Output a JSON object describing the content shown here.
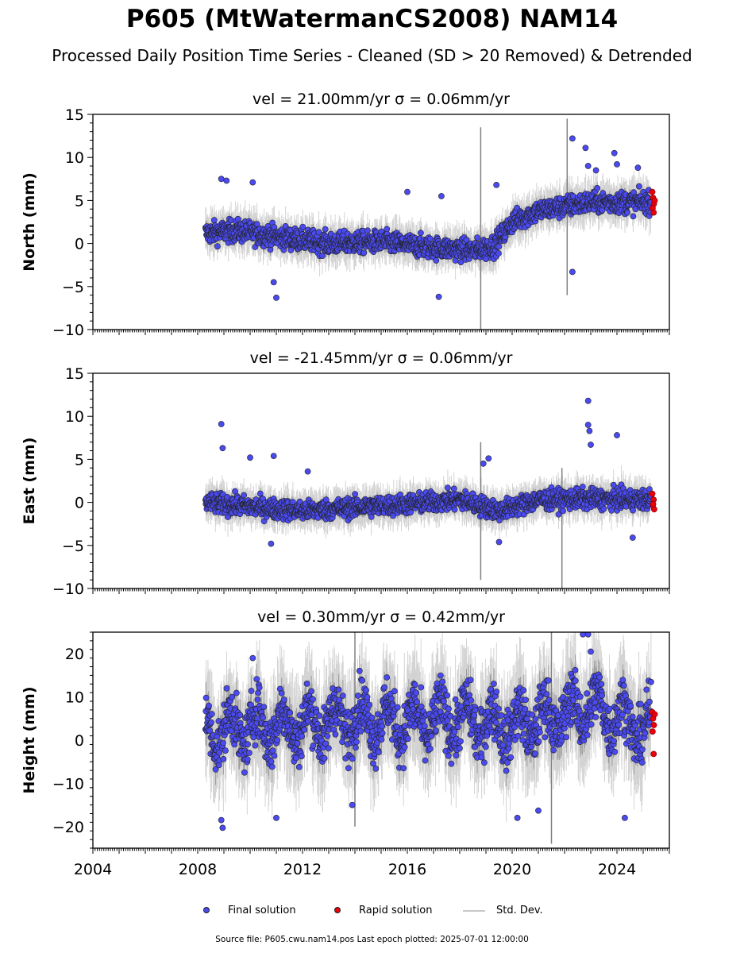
{
  "title": "P605 (MtWatermanCS2008) NAM14",
  "subtitle": "Processed Daily Position Time Series - Cleaned (SD > 20 Removed) & Detrended",
  "legend": {
    "final": "Final solution",
    "rapid": "Rapid solution",
    "std": "Std. Dev."
  },
  "footer": "Source file: P605.cwu.nam14.pos  Last epoch plotted: 2025-07-01 12:00:00",
  "colors": {
    "final": "#4a4af0",
    "rapid": "#e8000b",
    "std": "#c8c8c8",
    "marker_edge": "#222222"
  },
  "chart_data": [
    {
      "type": "scatter",
      "name": "north",
      "title": "vel = 21.00mm/yr   σ = 0.06mm/yr",
      "ylabel": "North (mm)",
      "xlim": [
        2004,
        2026
      ],
      "ylim": [
        -10,
        15
      ],
      "yticks": [
        -10,
        -5,
        0,
        5,
        10,
        15
      ],
      "ytick_labels": [
        "−10",
        "−5",
        "0",
        "5",
        "10",
        "15"
      ],
      "xticks": [
        2004,
        2008,
        2012,
        2016,
        2020,
        2024
      ],
      "xtick_labels": [
        "",
        "",
        "",
        "",
        "",
        ""
      ],
      "trend": [
        [
          2008.3,
          1.2
        ],
        [
          2009.5,
          1.5
        ],
        [
          2011.0,
          0.8
        ],
        [
          2013.0,
          0.0
        ],
        [
          2015.0,
          0.2
        ],
        [
          2017.0,
          -0.5
        ],
        [
          2018.5,
          -0.8
        ],
        [
          2019.3,
          -0.3
        ],
        [
          2020.0,
          2.5
        ],
        [
          2021.0,
          3.8
        ],
        [
          2022.0,
          4.3
        ],
        [
          2023.0,
          4.8
        ],
        [
          2025.3,
          4.8
        ]
      ],
      "outliers": [
        [
          2008.9,
          7.5
        ],
        [
          2009.1,
          7.3
        ],
        [
          2010.1,
          7.1
        ],
        [
          2010.9,
          -4.5
        ],
        [
          2011.0,
          -6.3
        ],
        [
          2016.0,
          6.0
        ],
        [
          2017.2,
          -6.2
        ],
        [
          2017.3,
          5.5
        ],
        [
          2019.0,
          -1.8
        ],
        [
          2019.4,
          6.8
        ],
        [
          2022.3,
          12.2
        ],
        [
          2022.3,
          -3.3
        ],
        [
          2022.8,
          11.1
        ],
        [
          2022.9,
          9.0
        ],
        [
          2023.2,
          8.5
        ],
        [
          2023.9,
          10.5
        ],
        [
          2024.0,
          9.2
        ],
        [
          2024.8,
          8.8
        ]
      ],
      "rapid": [
        [
          2025.35,
          6.0
        ],
        [
          2025.38,
          5.3
        ],
        [
          2025.41,
          4.6
        ],
        [
          2025.36,
          4.1
        ],
        [
          2025.4,
          3.6
        ],
        [
          2025.44,
          5.0
        ]
      ],
      "spread": 1.2,
      "sd_spikes": [
        [
          2018.8,
          -10,
          13.5
        ],
        [
          2022.1,
          -6,
          14.5
        ]
      ]
    },
    {
      "type": "scatter",
      "name": "east",
      "title": "vel = -21.45mm/yr   σ = 0.06mm/yr",
      "ylabel": "East (mm)",
      "xlim": [
        2004,
        2026
      ],
      "ylim": [
        -10,
        15
      ],
      "yticks": [
        -10,
        -5,
        0,
        5,
        10,
        15
      ],
      "ytick_labels": [
        "−10",
        "−5",
        "0",
        "5",
        "10",
        "15"
      ],
      "xticks": [
        2004,
        2008,
        2012,
        2016,
        2020,
        2024
      ],
      "xtick_labels": [
        "",
        "",
        "",
        "",
        "",
        ""
      ],
      "trend": [
        [
          2008.3,
          0.0
        ],
        [
          2010.0,
          -0.5
        ],
        [
          2012.0,
          -1.0
        ],
        [
          2014.0,
          -0.6
        ],
        [
          2016.0,
          -0.2
        ],
        [
          2018.0,
          0.3
        ],
        [
          2019.5,
          -1.0
        ],
        [
          2021.0,
          0.3
        ],
        [
          2023.0,
          0.4
        ],
        [
          2025.3,
          0.3
        ]
      ],
      "outliers": [
        [
          2008.9,
          9.1
        ],
        [
          2008.95,
          6.3
        ],
        [
          2010.0,
          5.2
        ],
        [
          2010.9,
          5.4
        ],
        [
          2010.8,
          -4.8
        ],
        [
          2012.2,
          3.6
        ],
        [
          2018.9,
          4.5
        ],
        [
          2019.1,
          5.1
        ],
        [
          2019.5,
          -4.6
        ],
        [
          2022.9,
          11.8
        ],
        [
          2022.9,
          9.0
        ],
        [
          2022.95,
          8.3
        ],
        [
          2023.0,
          6.7
        ],
        [
          2024.0,
          7.8
        ],
        [
          2024.6,
          -4.1
        ]
      ],
      "rapid": [
        [
          2025.35,
          1.0
        ],
        [
          2025.4,
          0.3
        ],
        [
          2025.37,
          -0.3
        ],
        [
          2025.42,
          -0.8
        ],
        [
          2025.38,
          -0.2
        ]
      ],
      "spread": 1.1,
      "sd_spikes": [
        [
          2018.8,
          -9,
          7
        ],
        [
          2021.9,
          -10,
          4
        ]
      ]
    },
    {
      "type": "scatter",
      "name": "height",
      "title": "vel = 0.30mm/yr   σ = 0.42mm/yr",
      "ylabel": "Height (mm)",
      "xlim": [
        2004,
        2026
      ],
      "ylim": [
        -25,
        25
      ],
      "yticks": [
        -20,
        -10,
        0,
        10,
        20
      ],
      "ytick_labels": [
        "−20",
        "−10",
        "0",
        "10",
        "20"
      ],
      "xticks": [
        2004,
        2008,
        2012,
        2016,
        2020,
        2024
      ],
      "xtick_labels": [
        "2004",
        "2008",
        "2012",
        "2016",
        "2020",
        "2024"
      ],
      "trend": [
        [
          2008.3,
          2.0
        ],
        [
          2010.0,
          3.0
        ],
        [
          2012.0,
          3.5
        ],
        [
          2014.0,
          5.0
        ],
        [
          2016.0,
          4.0
        ],
        [
          2018.0,
          5.0
        ],
        [
          2020.0,
          3.0
        ],
        [
          2022.0,
          6.0
        ],
        [
          2023.0,
          8.0
        ],
        [
          2025.3,
          2.0
        ]
      ],
      "outliers": [
        [
          2008.9,
          -18.5
        ],
        [
          2008.95,
          -20.3
        ],
        [
          2010.1,
          19.0
        ],
        [
          2011.0,
          -18.0
        ],
        [
          2013.9,
          -15.0
        ],
        [
          2020.2,
          -18.0
        ],
        [
          2021.0,
          -16.3
        ],
        [
          2022.7,
          24.5
        ],
        [
          2022.9,
          24.5
        ],
        [
          2023.0,
          20.5
        ],
        [
          2024.3,
          -18.0
        ]
      ],
      "rapid": [
        [
          2025.35,
          6.5
        ],
        [
          2025.38,
          5.0
        ],
        [
          2025.41,
          3.5
        ],
        [
          2025.36,
          2.0
        ],
        [
          2025.4,
          -3.2
        ],
        [
          2025.44,
          6.0
        ]
      ],
      "spread": 6.0,
      "sd_spikes": [
        [
          2014.0,
          -20,
          25
        ],
        [
          2021.5,
          -24,
          25
        ]
      ]
    }
  ]
}
